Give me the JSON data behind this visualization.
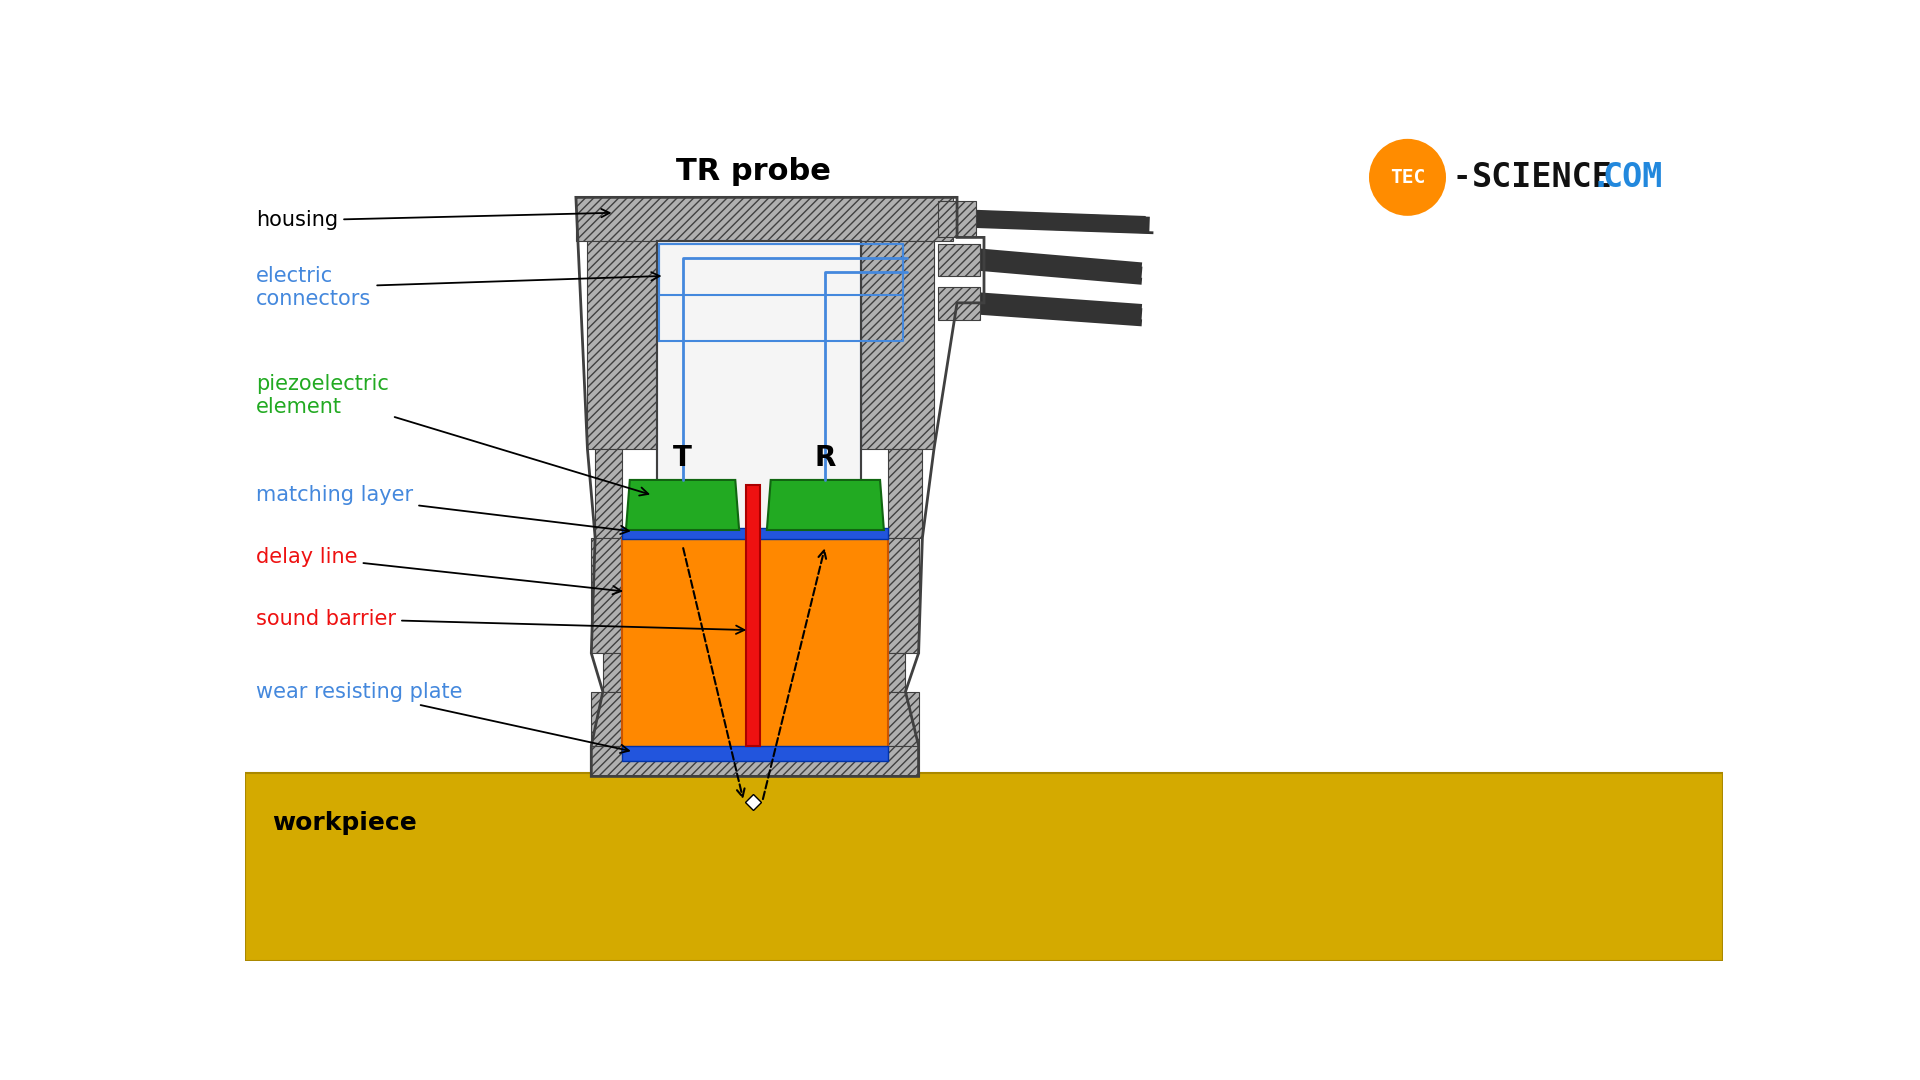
{
  "title": "TR probe",
  "bg_color": "#ffffff",
  "housing_face": "#b0b0b0",
  "housing_edge": "#404040",
  "housing_hatch": "////",
  "inner_face": "#f5f5f5",
  "inner_edge_blue": "#4477cc",
  "orange_face": "#ff8800",
  "orange_edge": "#cc5500",
  "green_face": "#22aa22",
  "green_edge": "#116611",
  "blue_face": "#2255dd",
  "blue_edge": "#0033aa",
  "red_face": "#ee1111",
  "red_edge": "#aa0000",
  "workpiece_face": "#d4aa00",
  "workpiece_edge": "#aa8800",
  "connector_blue": "#4488dd",
  "cable_dark": "#333333",
  "cable_mid": "#666666",
  "cable_light": "#999999",
  "label_housing": "housing",
  "label_electric": "electric\nconnectors",
  "label_piezo": "piezoelectric\nelement",
  "label_matching": "matching layer",
  "label_delay": "delay line",
  "label_sound": "sound barrier",
  "label_wear": "wear resisting plate",
  "label_workpiece": "workpiece",
  "label_T": "T",
  "label_R": "R",
  "logo_circ_color": "#ff8c00",
  "logo_tec_color": "#ffffff",
  "logo_science_color": "#111111",
  "logo_com_color": "#2288dd",
  "logo_dash_color": "#111111",
  "logo_dot_color": "#2288dd"
}
